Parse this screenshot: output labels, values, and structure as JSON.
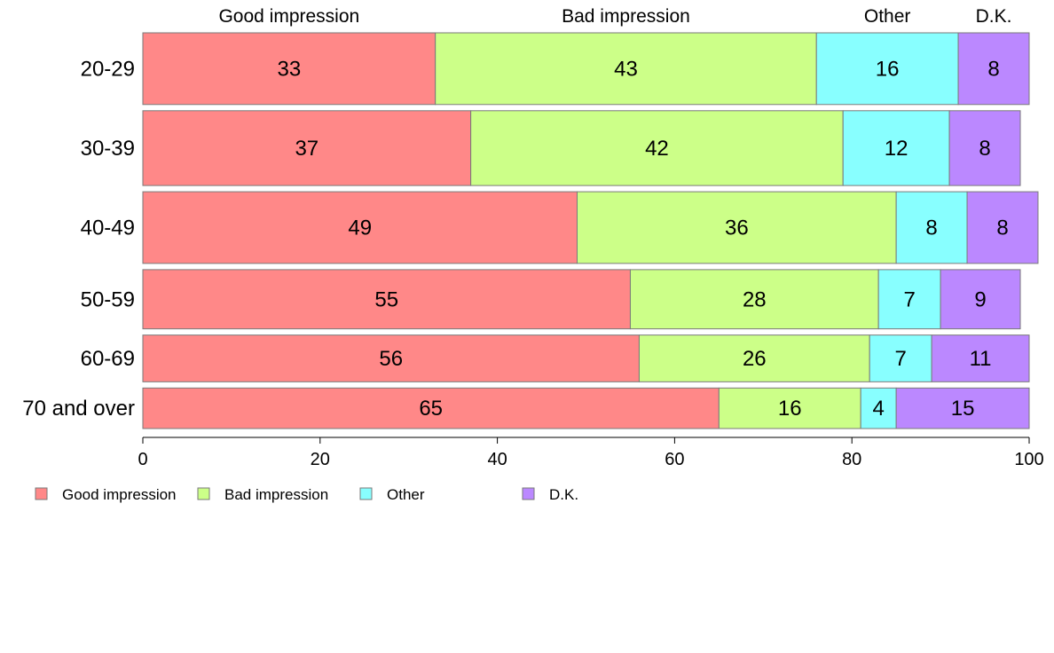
{
  "chart_data": {
    "type": "bar",
    "orientation": "horizontal",
    "stacked": true,
    "categories": [
      "20-29",
      "30-39",
      "40-49",
      "50-59",
      "60-69",
      "70 and over"
    ],
    "series": [
      {
        "name": "Good impression",
        "color": "#ff8888",
        "values": [
          33,
          37,
          49,
          55,
          56,
          65
        ]
      },
      {
        "name": "Bad impression",
        "color": "#ccff88",
        "values": [
          43,
          42,
          36,
          28,
          26,
          16
        ]
      },
      {
        "name": "Other",
        "color": "#88ffff",
        "values": [
          16,
          12,
          8,
          7,
          7,
          4
        ]
      },
      {
        "name": "D.K.",
        "color": "#bb88ff",
        "values": [
          8,
          8,
          8,
          9,
          11,
          15
        ]
      }
    ],
    "category_weights": [
      92,
      96,
      92,
      76,
      60,
      52
    ],
    "xlim": [
      0,
      100
    ],
    "xticks": [
      0,
      20,
      40,
      60,
      80,
      100
    ],
    "grid": false,
    "legend_placement": "bottom-left",
    "series_labels_at_top": true,
    "data_labels": true
  }
}
